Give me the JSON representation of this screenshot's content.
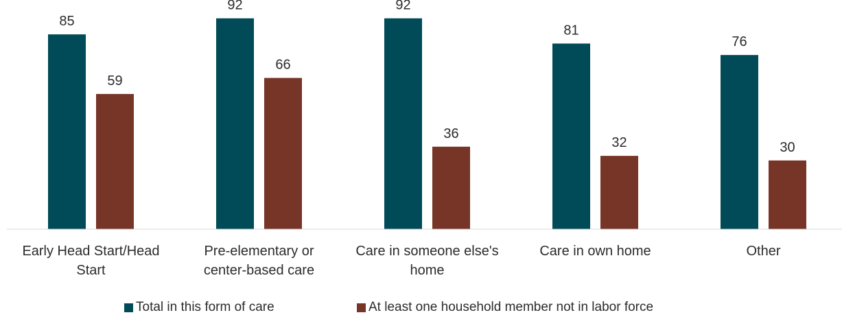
{
  "chart_data": {
    "type": "bar",
    "categories": [
      [
        "Early Head Start/Head",
        "Start"
      ],
      [
        "Pre-elementary or",
        "center-based care"
      ],
      [
        "Care in someone else's",
        "home"
      ],
      [
        "Care in own home"
      ],
      [
        "Other"
      ]
    ],
    "series": [
      {
        "name": "Total in this form of care",
        "color": "#004b57",
        "values": [
          85,
          92,
          92,
          81,
          76
        ]
      },
      {
        "name": "At least one household member not in labor force",
        "color": "#773527",
        "values": [
          59,
          66,
          36,
          32,
          30
        ]
      }
    ],
    "ylim": [
      0,
      100
    ],
    "grid": false,
    "data_labels": true,
    "legend_position": "bottom"
  }
}
